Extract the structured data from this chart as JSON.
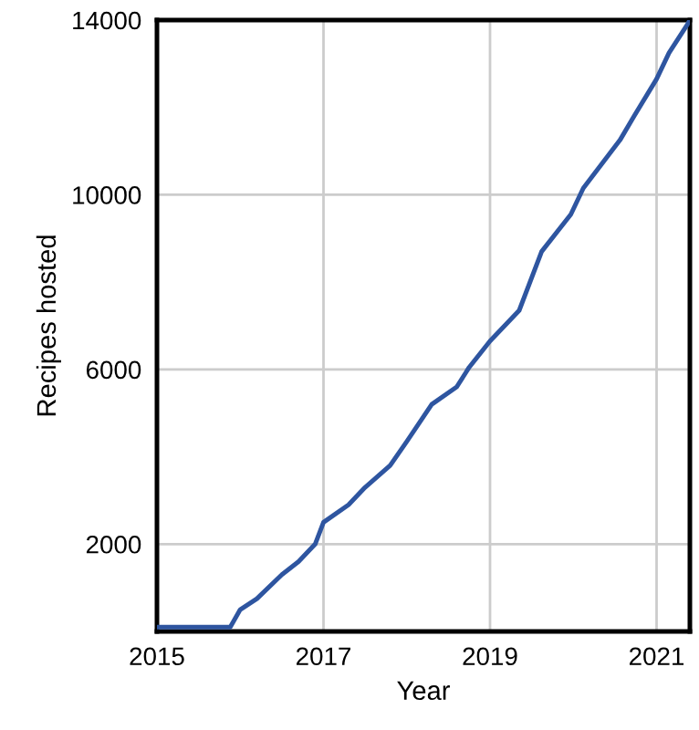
{
  "chart_data": {
    "type": "line",
    "xlabel": "Year",
    "ylabel": "Recipes hosted",
    "series": [
      {
        "color": "#2e55a0",
        "x": [
          2015.0,
          2015.88,
          2016.0,
          2016.2,
          2016.5,
          2016.7,
          2016.9,
          2017.0,
          2017.3,
          2017.5,
          2017.8,
          2018.0,
          2018.3,
          2018.6,
          2018.75,
          2019.0,
          2019.35,
          2019.62,
          2019.97,
          2020.12,
          2020.56,
          2020.73,
          2021.0,
          2021.15,
          2021.37,
          2021.4
        ],
        "values": [
          100,
          100,
          500,
          750,
          1300,
          1600,
          2000,
          2500,
          2900,
          3300,
          3800,
          4350,
          5200,
          5600,
          6050,
          6650,
          7350,
          8700,
          9550,
          10150,
          11250,
          11800,
          12650,
          13250,
          13900,
          14000
        ]
      }
    ],
    "xlim": [
      2015,
      2021.4
    ],
    "xticks": [
      2015,
      2017,
      2019,
      2021
    ],
    "ylim": [
      0,
      14000
    ],
    "yticks": [
      2000,
      6000,
      10000,
      14000
    ],
    "grid": true,
    "marker": "none",
    "line_style": "solid"
  }
}
